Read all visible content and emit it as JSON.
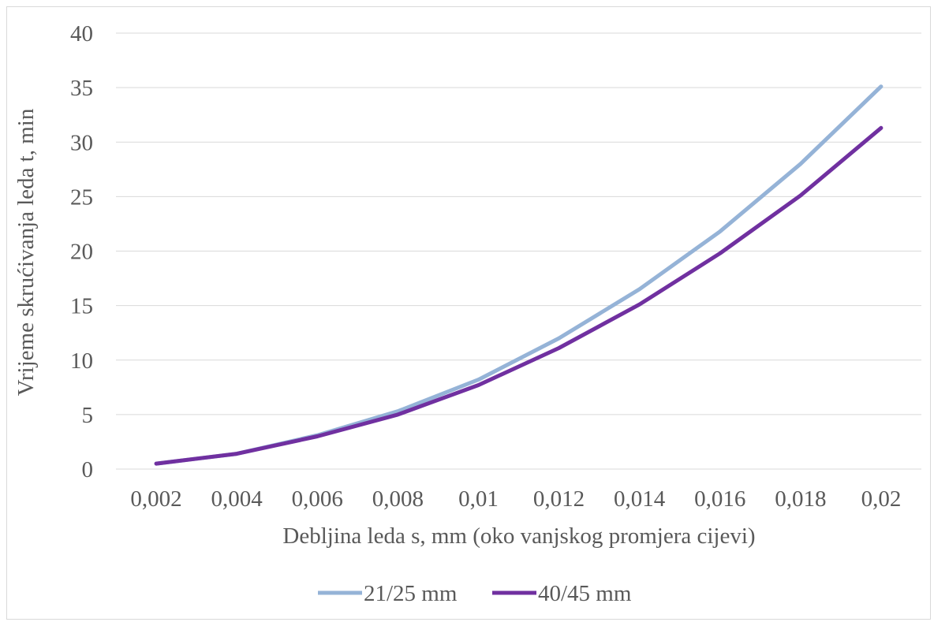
{
  "chart_data": {
    "type": "line",
    "title": "",
    "xlabel": "Debljina leda s, mm (oko vanjskog promjera cijevi)",
    "ylabel": "Vrijeme skrućivanja leda t, min",
    "categories": [
      "0,002",
      "0,004",
      "0,006",
      "0,008",
      "0,01",
      "0,012",
      "0,014",
      "0,016",
      "0,018",
      "0,02"
    ],
    "ylim": [
      0,
      40
    ],
    "yticks": [
      0,
      5,
      10,
      15,
      20,
      25,
      30,
      35,
      40
    ],
    "ytick_labels": [
      "0",
      "5",
      "10",
      "15",
      "20",
      "25",
      "30",
      "35",
      "40"
    ],
    "grid": true,
    "legend_position": "bottom",
    "series": [
      {
        "name": "21/25 mm",
        "color": "#95b3d7",
        "values": [
          0.5,
          1.4,
          3.1,
          5.3,
          8.2,
          12.0,
          16.5,
          21.8,
          28.0,
          35.1
        ]
      },
      {
        "name": "40/45 mm",
        "color": "#7030a0",
        "values": [
          0.5,
          1.4,
          3.0,
          5.0,
          7.7,
          11.1,
          15.1,
          19.8,
          25.1,
          31.3
        ]
      }
    ]
  }
}
